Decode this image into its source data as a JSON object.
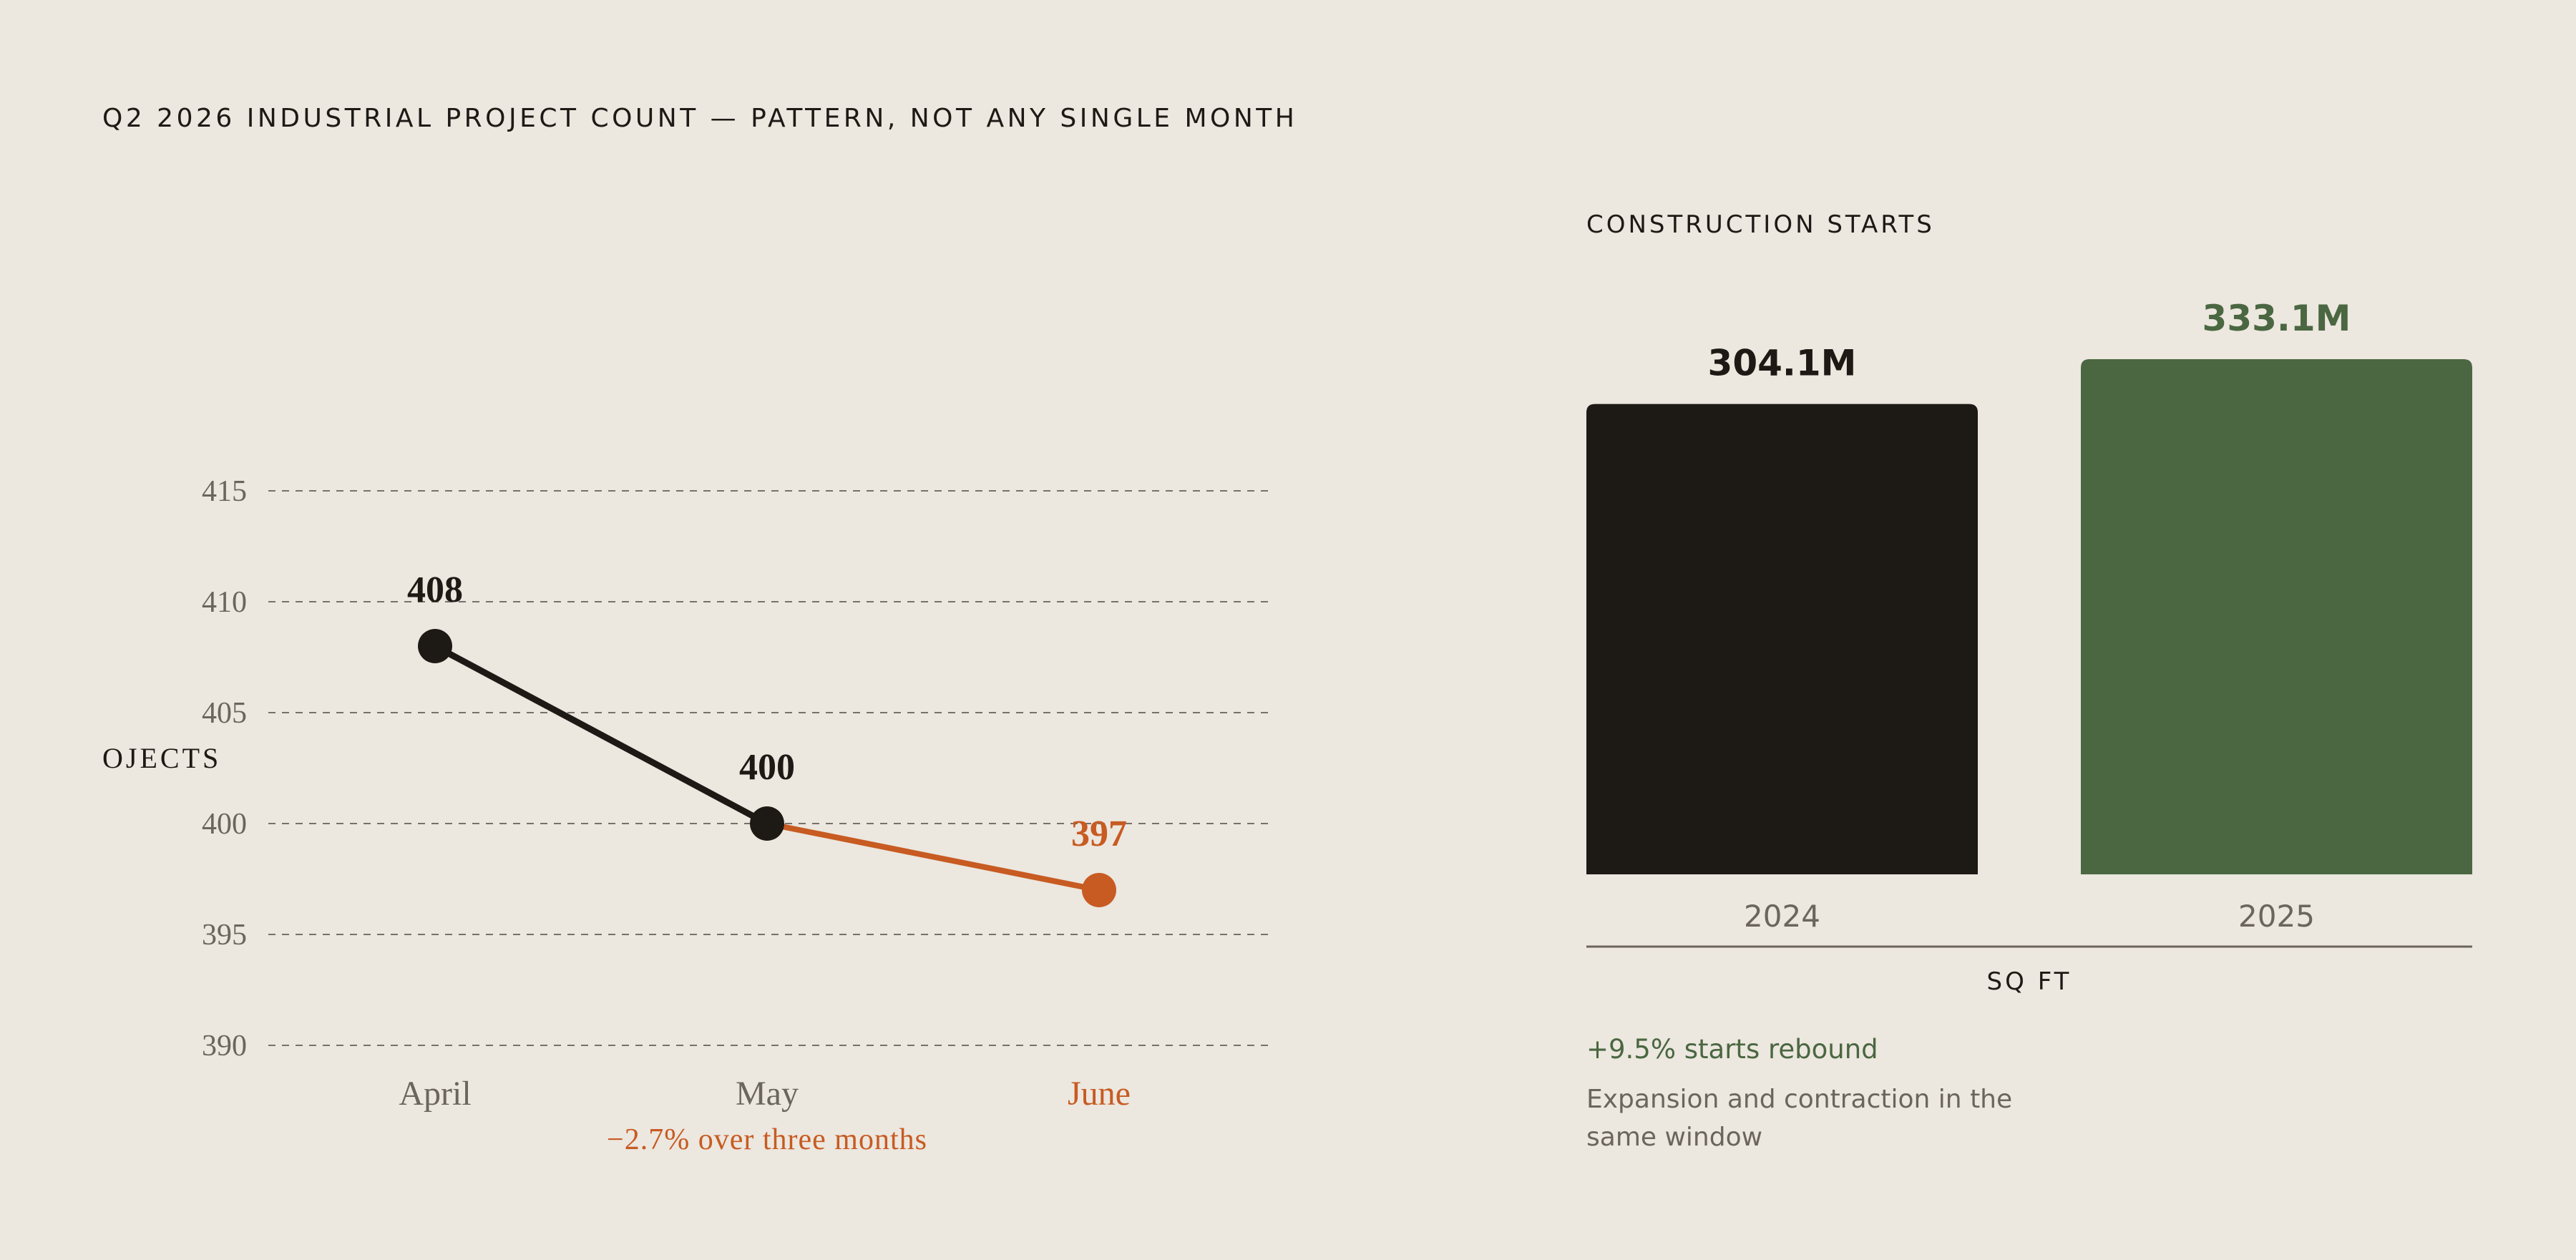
{
  "title": "Q2 2026 INDUSTRIAL PROJECT COUNT — PATTERN, NOT ANY SINGLE MONTH",
  "colors": {
    "background": "#ece7df",
    "ink": "#1d1a15",
    "accent": "#c75b22",
    "green": "#4a6741",
    "muted": "#6b655d"
  },
  "chart_data": [
    {
      "type": "line",
      "ylabel": "OJECTS",
      "categories": [
        "April",
        "May",
        "June"
      ],
      "values": [
        408,
        400,
        397
      ],
      "data_labels": [
        "408",
        "400",
        "397"
      ],
      "ylim": [
        390,
        415
      ],
      "yticks": [
        390,
        395,
        400,
        405,
        410,
        415
      ],
      "grid": true,
      "highlight_segment": "May–June",
      "annotation": "−2.7% over three months"
    },
    {
      "type": "bar",
      "title": "CONSTRUCTION STARTS",
      "categories": [
        "2024",
        "2025"
      ],
      "values": [
        304.1,
        333.1
      ],
      "data_labels": [
        "304.1M",
        "333.1M"
      ],
      "unit": "M",
      "xlabel": "SQ FT",
      "ylim": [
        0,
        333.1
      ]
    }
  ],
  "callout": {
    "title": "+9.5% starts rebound",
    "body": "Expansion and contraction in the same window"
  }
}
